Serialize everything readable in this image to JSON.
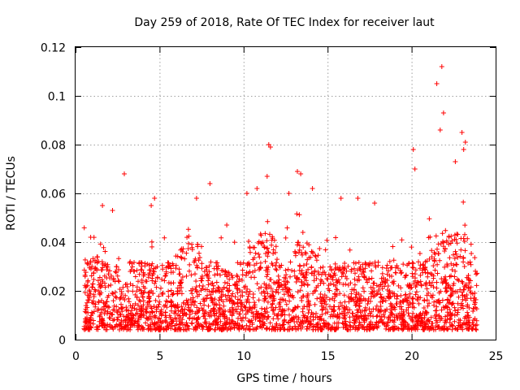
{
  "chart_data": {
    "type": "scatter",
    "title": "Day 259 of 2018, Rate Of TEC Index for receiver laut",
    "xlabel": "GPS time / hours",
    "ylabel": "ROTI / TECUs",
    "xlim": [
      0,
      25
    ],
    "ylim": [
      0,
      0.12
    ],
    "xticks": [
      0,
      5,
      10,
      15,
      20,
      25
    ],
    "xtick_labels": [
      "0",
      "5",
      "10",
      "15",
      "20",
      "25"
    ],
    "yticks": [
      0,
      0.02,
      0.04,
      0.06,
      0.08,
      0.1,
      0.12
    ],
    "ytick_labels": [
      "0",
      "0.02",
      "0.04",
      "0.06",
      "0.08",
      "0.1",
      "0.12"
    ],
    "grid": true,
    "marker": "+",
    "color": "#ff0000",
    "x_range_data": [
      0.5,
      23.9
    ],
    "series": [
      {
        "name": "ROTI",
        "x": [
          2.9,
          4.7,
          4.5,
          7.2,
          8.0,
          9.0,
          10.2,
          10.8,
          11.5,
          11.6,
          11.4,
          12.7,
          13.2,
          13.4,
          14.1,
          15.8,
          16.8,
          17.8,
          20.1,
          20.2,
          21.5,
          21.8,
          21.9,
          21.7,
          22.6,
          23.0,
          23.2,
          23.1,
          1.6,
          2.2,
          0.9
        ],
        "y": [
          0.068,
          0.058,
          0.055,
          0.058,
          0.064,
          0.047,
          0.06,
          0.062,
          0.08,
          0.079,
          0.067,
          0.06,
          0.069,
          0.068,
          0.062,
          0.058,
          0.058,
          0.056,
          0.078,
          0.07,
          0.105,
          0.112,
          0.093,
          0.086,
          0.073,
          0.085,
          0.081,
          0.078,
          0.055,
          0.053,
          0.042
        ]
      }
    ]
  }
}
